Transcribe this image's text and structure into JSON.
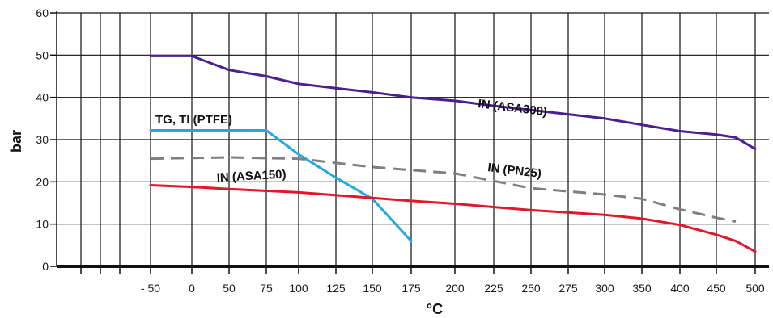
{
  "chart_data": {
    "type": "line",
    "title": "",
    "xlabel": "°C",
    "ylabel": "bar",
    "x_tick_labels": [
      "- 50",
      "0",
      "50",
      "75",
      "100",
      "125",
      "150",
      "175",
      "200",
      "225",
      "250",
      "275",
      "300",
      "350",
      "400",
      "450",
      "500"
    ],
    "y_ticks": [
      0,
      10,
      20,
      30,
      40,
      50,
      60
    ],
    "y_tick_labels": [
      "0",
      "10",
      "20",
      "30",
      "40",
      "50",
      "60"
    ],
    "ylim": [
      0,
      60
    ],
    "grid": true,
    "series": [
      {
        "name": "IN (ASA300)",
        "color": "#4b1f8f",
        "style": "solid",
        "points": [
          [
            -50,
            49.8
          ],
          [
            0,
            49.8
          ],
          [
            50,
            46.5
          ],
          [
            75,
            45
          ],
          [
            100,
            43.2
          ],
          [
            125,
            42.2
          ],
          [
            150,
            41.2
          ],
          [
            175,
            40
          ],
          [
            200,
            39.2
          ],
          [
            225,
            38
          ],
          [
            250,
            37
          ],
          [
            275,
            36
          ],
          [
            300,
            35
          ],
          [
            350,
            33.5
          ],
          [
            400,
            32
          ],
          [
            450,
            31.2
          ],
          [
            475,
            30.5
          ],
          [
            500,
            27.8
          ]
        ]
      },
      {
        "name": "TG, TI (PTFE)",
        "color": "#22a9e1",
        "style": "solid",
        "points": [
          [
            -50,
            32.2
          ],
          [
            75,
            32.2
          ],
          [
            100,
            26.5
          ],
          [
            125,
            21
          ],
          [
            150,
            16
          ],
          [
            175,
            6
          ]
        ]
      },
      {
        "name": "IN (PN25)",
        "color": "#7f7f7f",
        "style": "dashed",
        "points": [
          [
            -50,
            25.5
          ],
          [
            50,
            25.8
          ],
          [
            100,
            25.5
          ],
          [
            150,
            23.5
          ],
          [
            200,
            22
          ],
          [
            250,
            18.5
          ],
          [
            300,
            17
          ],
          [
            350,
            16
          ],
          [
            400,
            13.5
          ],
          [
            450,
            11.5
          ],
          [
            475,
            10.6
          ]
        ]
      },
      {
        "name": "IN (ASA150)",
        "color": "#e3172b",
        "style": "solid",
        "points": [
          [
            -50,
            19.2
          ],
          [
            0,
            18.8
          ],
          [
            50,
            18.3
          ],
          [
            100,
            17.5
          ],
          [
            150,
            16.2
          ],
          [
            175,
            15.5
          ],
          [
            200,
            14.8
          ],
          [
            250,
            13.3
          ],
          [
            300,
            12.2
          ],
          [
            350,
            11.3
          ],
          [
            400,
            9.8
          ],
          [
            450,
            7.5
          ],
          [
            475,
            6
          ],
          [
            500,
            3.5
          ]
        ]
      }
    ]
  }
}
